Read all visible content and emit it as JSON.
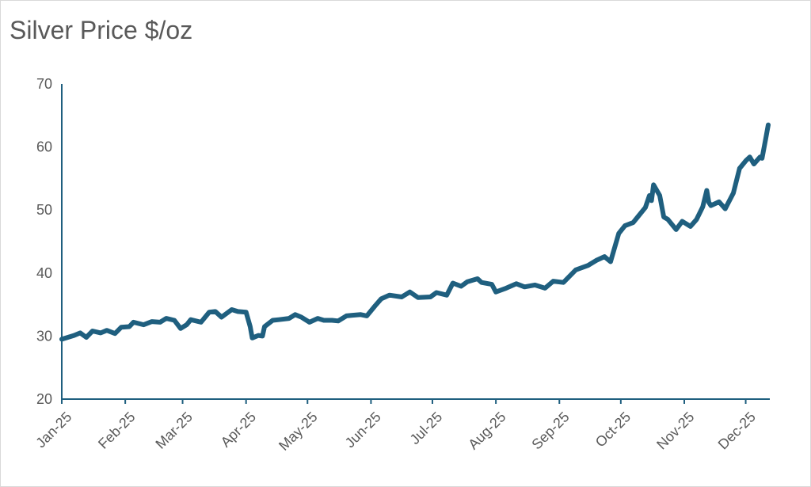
{
  "chart_data": {
    "type": "line",
    "title": "Silver Price $/oz",
    "xlabel": "",
    "ylabel": "",
    "ylim": [
      20,
      70
    ],
    "yticks": [
      20,
      30,
      40,
      50,
      60,
      70
    ],
    "xticks": [
      "Jan-25",
      "Feb-25",
      "Mar-25",
      "Apr-25",
      "May-25",
      "Jun-25",
      "Jul-25",
      "Aug-25",
      "Sep-25",
      "Oct-25",
      "Nov-25",
      "Dec-25"
    ],
    "line_color": "#1F5F7F",
    "grid": false,
    "legend": "none",
    "series": [
      {
        "x": [
          "2025-01-01",
          "2025-01-07",
          "2025-01-10",
          "2025-01-13",
          "2025-01-16",
          "2025-01-20",
          "2025-01-23",
          "2025-01-27",
          "2025-01-30",
          "2025-02-03",
          "2025-02-05",
          "2025-02-10",
          "2025-02-14",
          "2025-02-18",
          "2025-02-21",
          "2025-02-25",
          "2025-02-28",
          "2025-03-03",
          "2025-03-05",
          "2025-03-10",
          "2025-03-14",
          "2025-03-17",
          "2025-03-20",
          "2025-03-25",
          "2025-03-28",
          "2025-04-01",
          "2025-04-03",
          "2025-04-04",
          "2025-04-07",
          "2025-04-09",
          "2025-04-10",
          "2025-04-14",
          "2025-04-17",
          "2025-04-22",
          "2025-04-25",
          "2025-04-28",
          "2025-05-02",
          "2025-05-06",
          "2025-05-09",
          "2025-05-13",
          "2025-05-16",
          "2025-05-20",
          "2025-05-23",
          "2025-05-27",
          "2025-05-30",
          "2025-06-03",
          "2025-06-06",
          "2025-06-10",
          "2025-06-16",
          "2025-06-20",
          "2025-06-24",
          "2025-06-30",
          "2025-07-03",
          "2025-07-08",
          "2025-07-11",
          "2025-07-15",
          "2025-07-18",
          "2025-07-23",
          "2025-07-25",
          "2025-07-30",
          "2025-08-01",
          "2025-08-06",
          "2025-08-11",
          "2025-08-15",
          "2025-08-20",
          "2025-08-25",
          "2025-08-29",
          "2025-09-03",
          "2025-09-09",
          "2025-09-15",
          "2025-09-19",
          "2025-09-23",
          "2025-09-26",
          "2025-09-30",
          "2025-10-03",
          "2025-10-07",
          "2025-10-09",
          "2025-10-13",
          "2025-10-15",
          "2025-10-16",
          "2025-10-17",
          "2025-10-20",
          "2025-10-22",
          "2025-10-24",
          "2025-10-28",
          "2025-10-31",
          "2025-11-04",
          "2025-11-07",
          "2025-11-10",
          "2025-11-12",
          "2025-11-13",
          "2025-11-14",
          "2025-11-18",
          "2025-11-21",
          "2025-11-25",
          "2025-11-28",
          "2025-12-01",
          "2025-12-03",
          "2025-12-05",
          "2025-12-08",
          "2025-12-09",
          "2025-12-11",
          "2025-12-12"
        ],
        "y": [
          29.5,
          30.1,
          30.5,
          29.8,
          30.8,
          30.5,
          30.9,
          30.4,
          31.4,
          31.5,
          32.2,
          31.8,
          32.3,
          32.2,
          32.8,
          32.5,
          31.2,
          31.8,
          32.6,
          32.2,
          33.8,
          33.9,
          33.0,
          34.2,
          33.9,
          33.8,
          31.5,
          29.7,
          30.1,
          30.0,
          31.5,
          32.5,
          32.6,
          32.8,
          33.4,
          33.0,
          32.2,
          32.8,
          32.5,
          32.5,
          32.4,
          33.2,
          33.3,
          33.4,
          33.2,
          34.8,
          35.9,
          36.5,
          36.2,
          37.0,
          36.1,
          36.2,
          36.9,
          36.5,
          38.4,
          37.9,
          38.6,
          39.1,
          38.5,
          38.2,
          37.0,
          37.6,
          38.3,
          37.8,
          38.1,
          37.6,
          38.7,
          38.5,
          40.5,
          41.2,
          42.0,
          42.6,
          41.8,
          46.3,
          47.5,
          48.0,
          48.8,
          50.4,
          52.3,
          51.5,
          54.0,
          52.3,
          48.9,
          48.5,
          46.9,
          48.2,
          47.4,
          48.5,
          50.5,
          53.1,
          51.2,
          50.7,
          51.3,
          50.2,
          52.7,
          56.6,
          57.8,
          58.4,
          57.3,
          58.4,
          58.2,
          61.7,
          63.5
        ]
      }
    ]
  }
}
